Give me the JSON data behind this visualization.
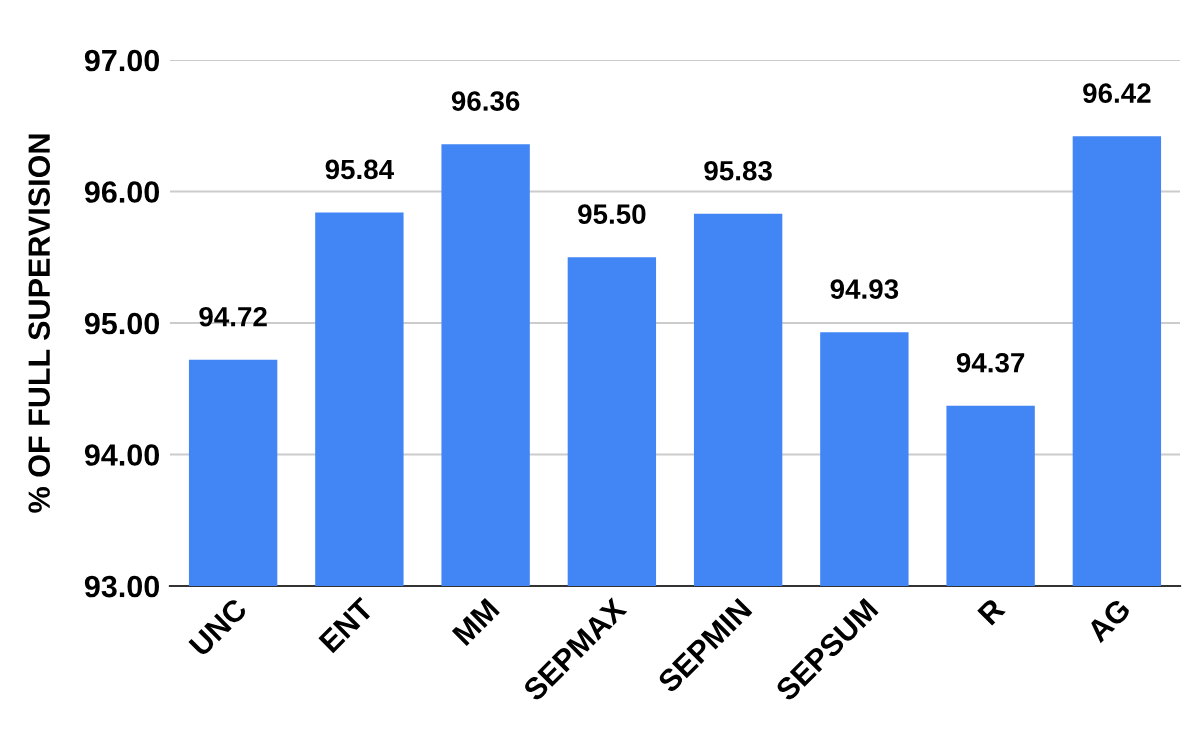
{
  "chart_data": {
    "type": "bar",
    "ylabel": "% OF FULL SUPERVISION",
    "categories": [
      "UNC",
      "ENT",
      "MM",
      "SEPMAX",
      "SEPMIN",
      "SEPSUM",
      "R",
      "AG"
    ],
    "values": [
      94.72,
      95.84,
      96.36,
      95.5,
      95.83,
      94.93,
      94.37,
      96.42
    ],
    "value_labels": [
      "94.72",
      "95.84",
      "96.36",
      "95.50",
      "95.83",
      "94.93",
      "94.37",
      "96.42"
    ],
    "color": "#4285f4",
    "ylim": [
      93,
      97
    ],
    "yticks": [
      {
        "value": 93,
        "label": "93.00"
      },
      {
        "value": 94,
        "label": "94.00"
      },
      {
        "value": 95,
        "label": "95.00"
      },
      {
        "value": 96,
        "label": "96.00"
      },
      {
        "value": 97,
        "label": "97.00"
      }
    ],
    "grid": "y",
    "legend": false
  }
}
